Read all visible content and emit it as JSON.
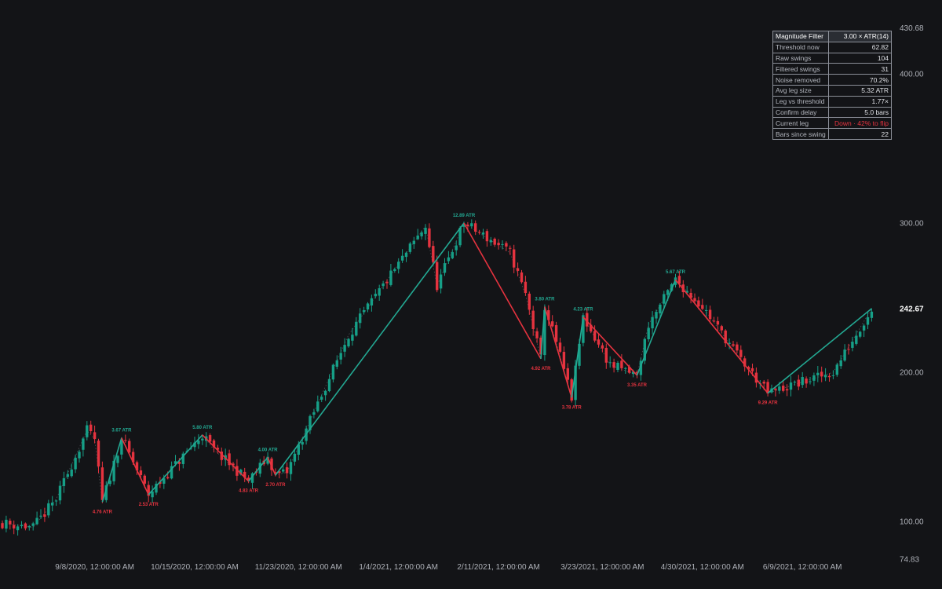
{
  "chart_data": {
    "type": "candlestick",
    "y_ticks": [
      "430.68",
      "400.00",
      "300.00",
      "200.00",
      "100.00",
      "74.83"
    ],
    "last_price": "242.67",
    "x_ticks": [
      "9/8/2020, 12:00:00 AM",
      "10/15/2020, 12:00:00 AM",
      "11/23/2020, 12:00:00 AM",
      "1/4/2021, 12:00:00 AM",
      "2/11/2021, 12:00:00 AM",
      "3/23/2021, 12:00:00 AM",
      "4/30/2021, 12:00:00 AM",
      "6/9/2021, 12:00:00 AM"
    ],
    "x_tick_index": [
      24,
      50,
      77,
      103,
      129,
      156,
      182,
      208
    ],
    "colors": {
      "up": "#169f87",
      "down": "#e5333f",
      "zigzag_up": "#23a993",
      "zigzag_down": "#e5333f"
    },
    "swings": [
      {
        "i": 26,
        "p": 113,
        "label": "4.76 ATR",
        "kind": "low"
      },
      {
        "i": 31,
        "p": 156,
        "label": "3.67 ATR",
        "kind": "high"
      },
      {
        "i": 38,
        "p": 118,
        "label": "2.53 ATR",
        "kind": "low"
      },
      {
        "i": 52,
        "p": 158,
        "label": "5.80 ATR",
        "kind": "high"
      },
      {
        "i": 64,
        "p": 127,
        "label": "4.83 ATR",
        "kind": "low"
      },
      {
        "i": 69,
        "p": 143,
        "label": "4.00 ATR",
        "kind": "high"
      },
      {
        "i": 71,
        "p": 131,
        "label": "2.70 ATR",
        "kind": "low"
      },
      {
        "i": 120,
        "p": 300,
        "label": "12.89 ATR",
        "kind": "high"
      },
      {
        "i": 140,
        "p": 209,
        "label": "4.92 ATR",
        "kind": "low"
      },
      {
        "i": 141,
        "p": 244,
        "label": "3.80 ATR",
        "kind": "high"
      },
      {
        "i": 148,
        "p": 183,
        "label": "3.78 ATR",
        "kind": "low"
      },
      {
        "i": 151,
        "p": 237,
        "label": "4.23 ATR",
        "kind": "high"
      },
      {
        "i": 165,
        "p": 198,
        "label": "3.35 ATR",
        "kind": "low"
      },
      {
        "i": 175,
        "p": 262,
        "label": "5.67 ATR",
        "kind": "high"
      },
      {
        "i": 199,
        "p": 186,
        "label": "9.29 ATR",
        "kind": "low"
      },
      {
        "i": 226,
        "p": 242.67,
        "label": "",
        "kind": "last"
      }
    ],
    "faint_path": [
      [
        0,
        99
      ],
      [
        8,
        96
      ],
      [
        14,
        115
      ],
      [
        22,
        161
      ],
      [
        24,
        155
      ],
      [
        26,
        113
      ],
      [
        31,
        156
      ],
      [
        38,
        118
      ],
      [
        52,
        158
      ],
      [
        55,
        148
      ],
      [
        64,
        127
      ],
      [
        69,
        143
      ],
      [
        71,
        131
      ],
      [
        74,
        133
      ],
      [
        90,
        225
      ],
      [
        110,
        298
      ],
      [
        113,
        258
      ],
      [
        120,
        300
      ],
      [
        132,
        280
      ],
      [
        136,
        252
      ],
      [
        140,
        209
      ],
      [
        141,
        244
      ],
      [
        144,
        220
      ],
      [
        148,
        183
      ],
      [
        151,
        237
      ],
      [
        158,
        205
      ],
      [
        165,
        198
      ],
      [
        168,
        232
      ],
      [
        175,
        262
      ],
      [
        182,
        244
      ],
      [
        193,
        205
      ],
      [
        199,
        186
      ],
      [
        216,
        200
      ],
      [
        226,
        242.67
      ]
    ],
    "seed": 11
  },
  "stats": {
    "header": {
      "label": "Magnitude Filter",
      "value": "3.00 × ATR(14)"
    },
    "rows": [
      {
        "label": "Threshold now",
        "value": "62.82"
      },
      {
        "label": "Raw swings",
        "value": "104"
      },
      {
        "label": "Filtered swings",
        "value": "31"
      },
      {
        "label": "Noise removed",
        "value": "70.2%"
      },
      {
        "label": "Avg leg size",
        "value": "5.32 ATR"
      },
      {
        "label": "Leg vs threshold",
        "value": "1.77×"
      },
      {
        "label": "Confirm delay",
        "value": "5.0 bars"
      },
      {
        "label": "Current leg",
        "value": "Down · 42% to flip"
      },
      {
        "label": "Bars since swing",
        "value": "22"
      }
    ]
  }
}
